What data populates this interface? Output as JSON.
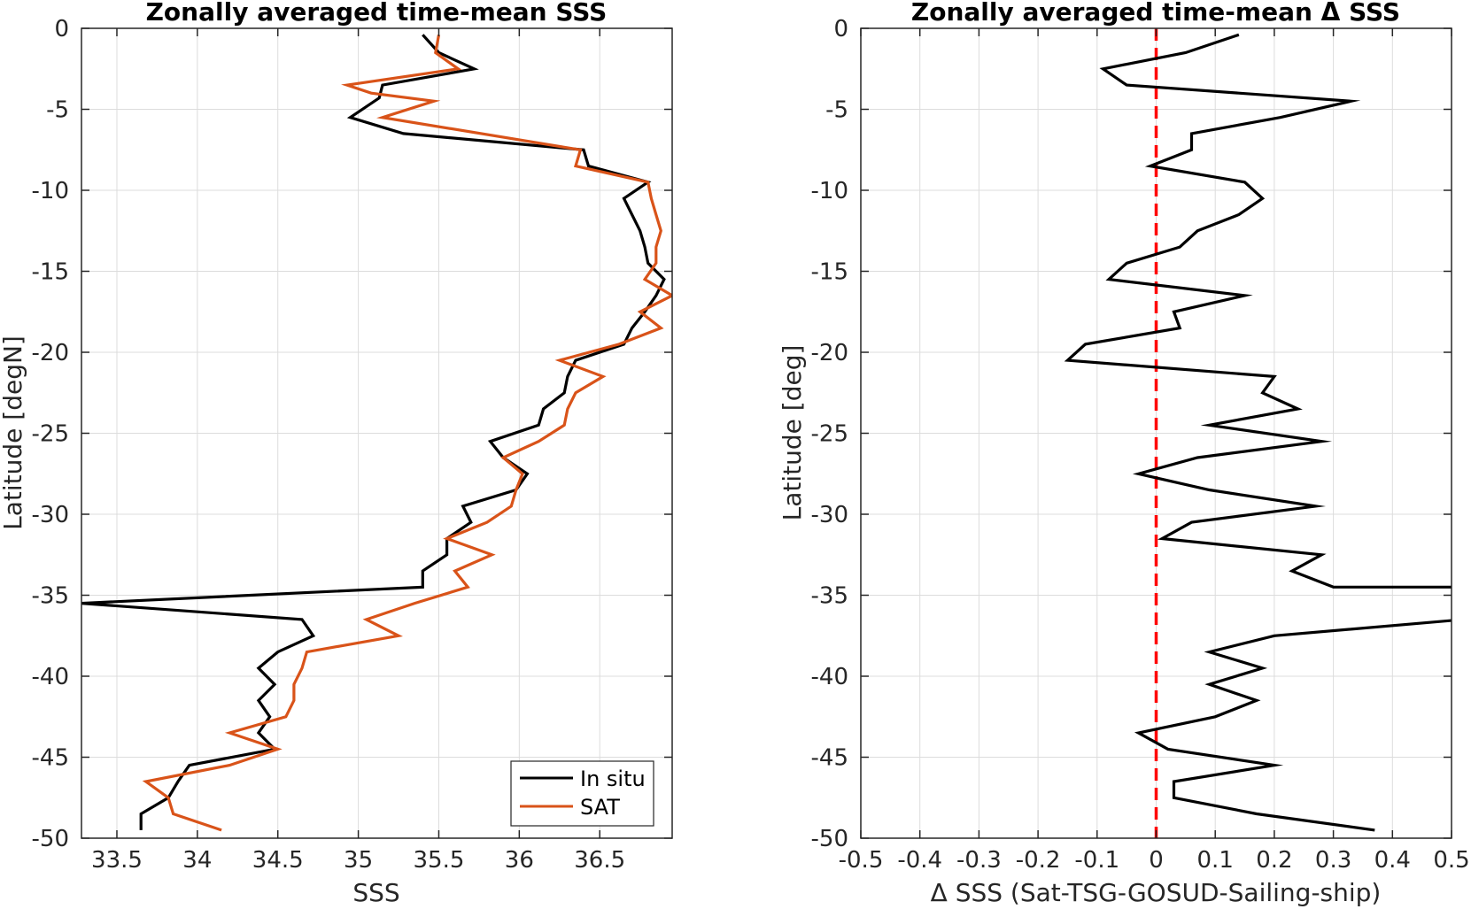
{
  "chart_data": [
    {
      "type": "line",
      "title": "Zonally averaged time-mean SSS",
      "xlabel": "SSS",
      "ylabel": "Latitude [degN]",
      "xlim": [
        33.28,
        36.95
      ],
      "ylim": [
        -50,
        0
      ],
      "xticks": [
        33.5,
        34,
        34.5,
        35,
        35.5,
        36,
        36.5
      ],
      "xtick_labels": [
        "33.5",
        "34",
        "34.5",
        "35",
        "35.5",
        "36",
        "36.5"
      ],
      "yticks": [
        0,
        -5,
        -10,
        -15,
        -20,
        -25,
        -30,
        -35,
        -40,
        -45,
        -50
      ],
      "ytick_labels": [
        "0",
        "-5",
        "-10",
        "-15",
        "-20",
        "-25",
        "-30",
        "-35",
        "-40",
        "-45",
        "-50"
      ],
      "grid": true,
      "legend_position": "bottom-right",
      "series": [
        {
          "name": "In situ",
          "color": "#000000",
          "points": [
            [
              35.4,
              -0.4
            ],
            [
              35.5,
              -1.5
            ],
            [
              35.72,
              -2.5
            ],
            [
              35.15,
              -3.5
            ],
            [
              35.13,
              -4.3
            ],
            [
              34.95,
              -5.5
            ],
            [
              35.28,
              -6.5
            ],
            [
              36.4,
              -7.5
            ],
            [
              36.43,
              -8.5
            ],
            [
              36.8,
              -9.5
            ],
            [
              36.65,
              -10.5
            ],
            [
              36.7,
              -11.5
            ],
            [
              36.75,
              -12.5
            ],
            [
              36.78,
              -13.5
            ],
            [
              36.8,
              -14.5
            ],
            [
              36.9,
              -15.5
            ],
            [
              36.85,
              -16.5
            ],
            [
              36.78,
              -17.5
            ],
            [
              36.7,
              -18.5
            ],
            [
              36.65,
              -19.5
            ],
            [
              36.35,
              -20.5
            ],
            [
              36.3,
              -21.5
            ],
            [
              36.28,
              -22.5
            ],
            [
              36.15,
              -23.5
            ],
            [
              36.12,
              -24.5
            ],
            [
              35.82,
              -25.5
            ],
            [
              35.9,
              -26.5
            ],
            [
              36.05,
              -27.5
            ],
            [
              35.98,
              -28.5
            ],
            [
              35.65,
              -29.5
            ],
            [
              35.7,
              -30.5
            ],
            [
              35.55,
              -31.5
            ],
            [
              35.55,
              -32.5
            ],
            [
              35.4,
              -33.5
            ],
            [
              35.4,
              -34.5
            ],
            [
              33.28,
              -35.5
            ],
            [
              34.65,
              -36.5
            ],
            [
              34.72,
              -37.5
            ],
            [
              34.5,
              -38.5
            ],
            [
              34.38,
              -39.5
            ],
            [
              34.48,
              -40.5
            ],
            [
              34.38,
              -41.5
            ],
            [
              34.45,
              -42.5
            ],
            [
              34.38,
              -43.5
            ],
            [
              34.48,
              -44.5
            ],
            [
              33.95,
              -45.5
            ],
            [
              33.88,
              -46.5
            ],
            [
              33.82,
              -47.5
            ],
            [
              33.65,
              -48.5
            ],
            [
              33.65,
              -49.5
            ]
          ]
        },
        {
          "name": "SAT",
          "color": "#D95319",
          "points": [
            [
              35.5,
              -0.4
            ],
            [
              35.48,
              -1.5
            ],
            [
              35.62,
              -2.5
            ],
            [
              34.93,
              -3.5
            ],
            [
              35.08,
              -4.0
            ],
            [
              35.47,
              -4.5
            ],
            [
              35.15,
              -5.5
            ],
            [
              36.38,
              -7.5
            ],
            [
              36.35,
              -8.5
            ],
            [
              36.8,
              -9.5
            ],
            [
              36.82,
              -10.5
            ],
            [
              36.85,
              -11.5
            ],
            [
              36.88,
              -12.5
            ],
            [
              36.85,
              -13.5
            ],
            [
              36.85,
              -14.5
            ],
            [
              36.78,
              -15.5
            ],
            [
              36.95,
              -16.5
            ],
            [
              36.75,
              -17.5
            ],
            [
              36.88,
              -18.5
            ],
            [
              36.62,
              -19.5
            ],
            [
              36.25,
              -20.5
            ],
            [
              36.52,
              -21.5
            ],
            [
              36.35,
              -22.5
            ],
            [
              36.3,
              -23.5
            ],
            [
              36.28,
              -24.5
            ],
            [
              36.12,
              -25.5
            ],
            [
              35.9,
              -26.5
            ],
            [
              36.02,
              -27.5
            ],
            [
              35.98,
              -28.5
            ],
            [
              35.95,
              -29.5
            ],
            [
              35.8,
              -30.5
            ],
            [
              35.55,
              -31.5
            ],
            [
              35.83,
              -32.5
            ],
            [
              35.6,
              -33.5
            ],
            [
              35.68,
              -34.5
            ],
            [
              35.35,
              -35.5
            ],
            [
              35.05,
              -36.5
            ],
            [
              35.25,
              -37.5
            ],
            [
              34.68,
              -38.5
            ],
            [
              34.65,
              -39.5
            ],
            [
              34.6,
              -40.5
            ],
            [
              34.6,
              -41.5
            ],
            [
              34.55,
              -42.5
            ],
            [
              34.2,
              -43.5
            ],
            [
              34.5,
              -44.5
            ],
            [
              34.2,
              -45.5
            ],
            [
              33.68,
              -46.5
            ],
            [
              33.82,
              -47.5
            ],
            [
              33.85,
              -48.5
            ],
            [
              34.15,
              -49.5
            ]
          ]
        }
      ]
    },
    {
      "type": "line",
      "title": "Zonally averaged time-mean Δ SSS",
      "xlabel": "Δ SSS (Sat-TSG-GOSUD-Sailing-ship)",
      "ylabel": "Latitude [deg]",
      "xlim": [
        -0.5,
        0.5
      ],
      "ylim": [
        -50,
        0
      ],
      "xticks": [
        -0.5,
        -0.4,
        -0.3,
        -0.2,
        -0.1,
        0,
        0.1,
        0.2,
        0.3,
        0.4,
        0.5
      ],
      "xtick_labels": [
        "-0.5",
        "-0.4",
        "-0.3",
        "-0.2",
        "-0.1",
        "0",
        "0.1",
        "0.2",
        "0.3",
        "0.4",
        "0.5"
      ],
      "yticks": [
        0,
        -5,
        -10,
        -15,
        -20,
        -25,
        -30,
        -35,
        -40,
        -45,
        -50
      ],
      "ytick_labels": [
        "0",
        "-5",
        "-10",
        "-15",
        "-20",
        "-25",
        "-30",
        "-35",
        "-40",
        "-45",
        "-50"
      ],
      "grid": true,
      "reference_line": {
        "x": 0,
        "color": "#FF0000",
        "style": "dashed"
      },
      "series": [
        {
          "color": "#000000",
          "points": [
            [
              0.14,
              -0.4
            ],
            [
              0.05,
              -1.5
            ],
            [
              -0.09,
              -2.5
            ],
            [
              -0.05,
              -3.5
            ],
            [
              0.33,
              -4.5
            ],
            [
              0.21,
              -5.5
            ],
            [
              0.06,
              -6.5
            ],
            [
              0.06,
              -7.5
            ],
            [
              -0.01,
              -8.5
            ],
            [
              0.15,
              -9.5
            ],
            [
              0.18,
              -10.5
            ],
            [
              0.14,
              -11.5
            ],
            [
              0.07,
              -12.5
            ],
            [
              0.04,
              -13.5
            ],
            [
              -0.05,
              -14.5
            ],
            [
              -0.08,
              -15.5
            ],
            [
              0.15,
              -16.5
            ],
            [
              0.03,
              -17.5
            ],
            [
              0.04,
              -18.5
            ],
            [
              -0.12,
              -19.5
            ],
            [
              -0.15,
              -20.5
            ],
            [
              0.2,
              -21.5
            ],
            [
              0.18,
              -22.5
            ],
            [
              0.24,
              -23.5
            ],
            [
              0.09,
              -24.5
            ],
            [
              0.28,
              -25.5
            ],
            [
              0.07,
              -26.5
            ],
            [
              -0.03,
              -27.5
            ],
            [
              0.09,
              -28.5
            ],
            [
              0.27,
              -29.5
            ],
            [
              0.06,
              -30.5
            ],
            [
              0.01,
              -31.5
            ],
            [
              0.28,
              -32.5
            ],
            [
              0.23,
              -33.5
            ],
            [
              0.3,
              -34.5
            ],
            [
              0.52,
              -34.5
            ],
            [
              0.52,
              -36.5
            ],
            [
              0.2,
              -37.5
            ],
            [
              0.09,
              -38.5
            ],
            [
              0.18,
              -39.5
            ],
            [
              0.09,
              -40.5
            ],
            [
              0.17,
              -41.5
            ],
            [
              0.1,
              -42.5
            ],
            [
              -0.03,
              -43.5
            ],
            [
              0.02,
              -44.5
            ],
            [
              0.2,
              -45.5
            ],
            [
              0.03,
              -46.5
            ],
            [
              0.03,
              -47.5
            ],
            [
              0.17,
              -48.5
            ],
            [
              0.37,
              -49.5
            ]
          ]
        }
      ]
    }
  ],
  "legend": {
    "items": [
      {
        "label": "In situ",
        "color": "#000000"
      },
      {
        "label": "SAT",
        "color": "#D95319"
      }
    ]
  }
}
